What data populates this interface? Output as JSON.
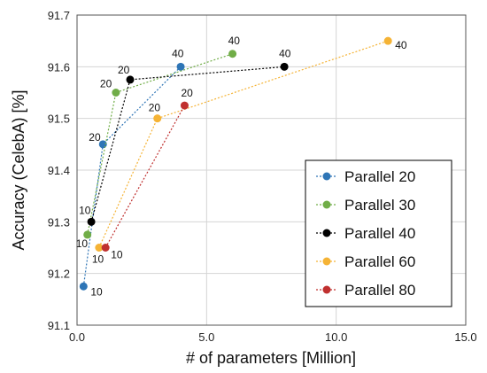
{
  "chart_data": {
    "type": "scatter",
    "xlabel": "# of parameters [Million]",
    "ylabel": "Accuracy (CelebA) [%]",
    "xlim": [
      0.0,
      15.0
    ],
    "ylim": [
      91.1,
      91.7
    ],
    "x_ticks": [
      "0.0",
      "5.0",
      "10.0",
      "15.0"
    ],
    "y_ticks": [
      "91.1",
      "91.2",
      "91.3",
      "91.4",
      "91.5",
      "91.6",
      "91.7"
    ],
    "grid": true,
    "legend_position": "bottom-right",
    "series": [
      {
        "name": "Parallel 20",
        "color": "#2e75b6",
        "points": [
          {
            "x": 0.25,
            "y": 91.175,
            "label": "10"
          },
          {
            "x": 1.0,
            "y": 91.45,
            "label": "20"
          },
          {
            "x": 4.0,
            "y": 91.6,
            "label": "40"
          }
        ]
      },
      {
        "name": "Parallel 30",
        "color": "#70ad47",
        "points": [
          {
            "x": 0.4,
            "y": 91.275,
            "label": "10"
          },
          {
            "x": 1.5,
            "y": 91.55,
            "label": "20"
          },
          {
            "x": 6.0,
            "y": 91.625,
            "label": "40"
          }
        ]
      },
      {
        "name": "Parallel 40",
        "color": "#000000",
        "points": [
          {
            "x": 0.55,
            "y": 91.3,
            "label": "10"
          },
          {
            "x": 2.05,
            "y": 91.575,
            "label": "20"
          },
          {
            "x": 8.0,
            "y": 91.6,
            "label": "40"
          }
        ]
      },
      {
        "name": "Parallel 60",
        "color": "#f5b335",
        "points": [
          {
            "x": 0.85,
            "y": 91.25,
            "label": "10"
          },
          {
            "x": 3.1,
            "y": 91.5,
            "label": "20"
          },
          {
            "x": 12.0,
            "y": 91.65,
            "label": "40"
          }
        ]
      },
      {
        "name": "Parallel 80",
        "color": "#c0302f",
        "points": [
          {
            "x": 1.1,
            "y": 91.25,
            "label": "10"
          },
          {
            "x": 4.15,
            "y": 91.525,
            "label": "20"
          }
        ]
      }
    ]
  }
}
